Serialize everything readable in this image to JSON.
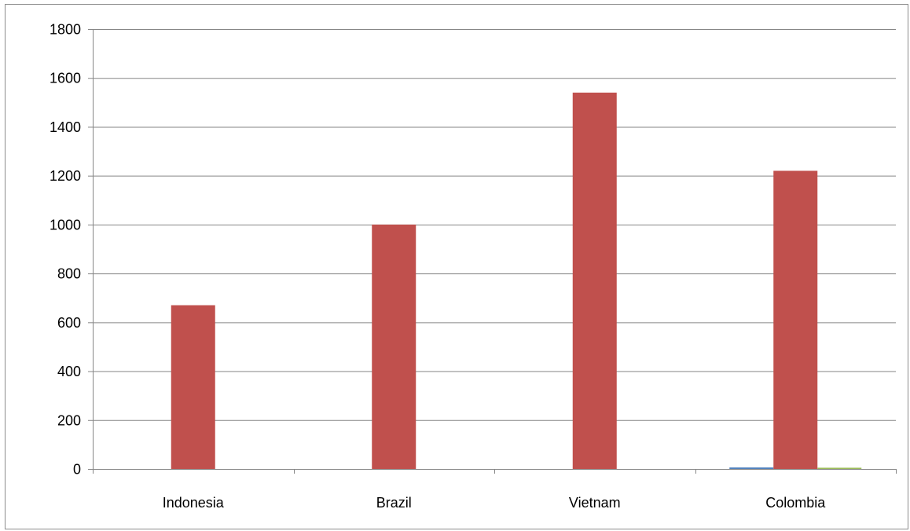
{
  "chart_data": {
    "type": "bar",
    "categories": [
      "Indonesia",
      "Brazil",
      "Vietnam",
      "Colombia"
    ],
    "series": [
      {
        "values": [
          0,
          0,
          0,
          6
        ]
      },
      {
        "values": [
          670,
          1000,
          1540,
          1220
        ]
      },
      {
        "values": [
          0,
          0,
          0,
          5
        ]
      }
    ],
    "title": "",
    "xlabel": "",
    "ylabel": "",
    "ylim": [
      0,
      1800
    ],
    "yticks": [
      0,
      200,
      400,
      600,
      800,
      1000,
      1200,
      1400,
      1600,
      1800
    ],
    "ytick_labels": [
      "0",
      "200",
      "400",
      "600",
      "800",
      "1000",
      "1200",
      "1400",
      "1600",
      "1800"
    ],
    "grid": true,
    "legend": "none",
    "colors": [
      "#4f81bd",
      "#c0504d",
      "#9bbb59"
    ],
    "gridline_color": "#868686",
    "axis_color": "#868686"
  }
}
